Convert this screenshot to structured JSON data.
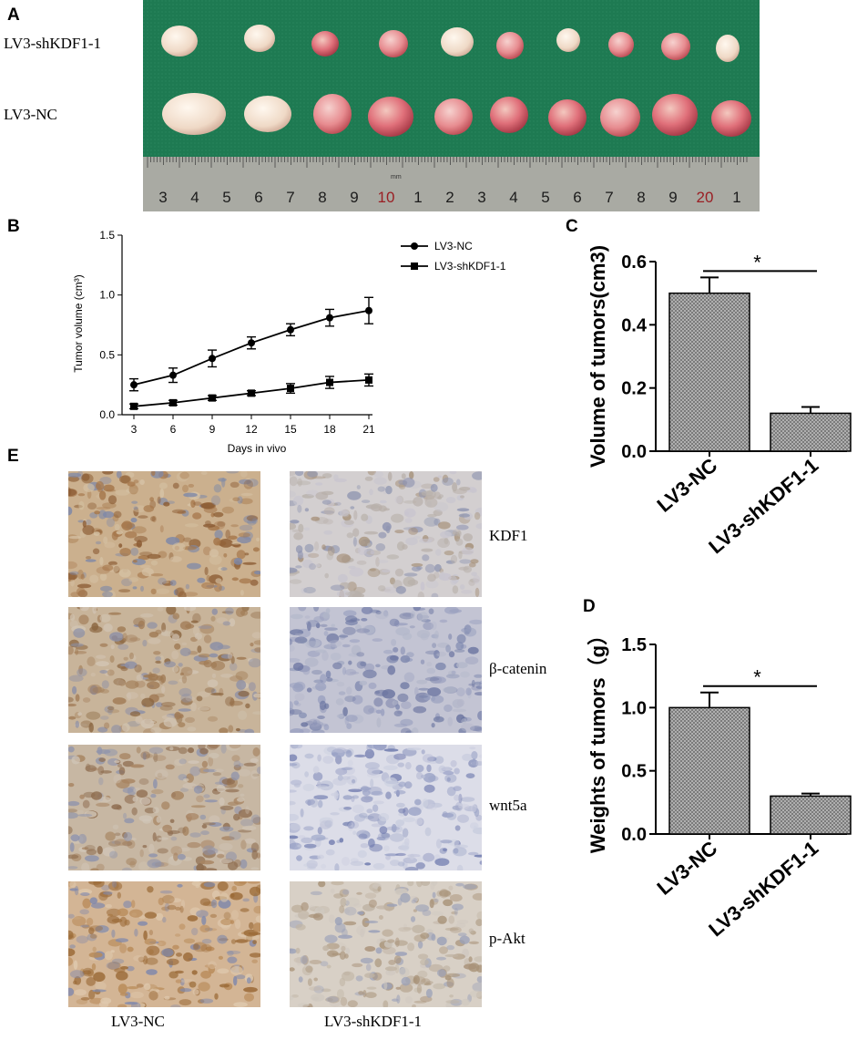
{
  "colors": {
    "cloth": "#1f7a52",
    "ruler": "#a9aaa3",
    "ruler_red": "#9a1f24",
    "tumor_pale": "#f2e4d6",
    "tumor_pink": "#e98a92",
    "ihc_brown": "#b99869",
    "ihc_blue": "#b9bccd",
    "bar_fill": "#a8a8a8"
  },
  "panel_a": {
    "letter": "A",
    "row1_label": "LV3-shKDF1-1",
    "row2_label": "LV3-NC",
    "ruler_numbers": [
      "3",
      "4",
      "5",
      "6",
      "7",
      "8",
      "9",
      "10",
      "1",
      "2",
      "3",
      "4",
      "5",
      "6",
      "7",
      "8",
      "9",
      "20",
      "1"
    ],
    "ruler_unit": "mm"
  },
  "panel_b": {
    "letter": "B",
    "chart_data": {
      "type": "line",
      "x": [
        3,
        6,
        9,
        12,
        15,
        18,
        21
      ],
      "xlabel": "Days in vivo",
      "ylabel": "Tumor volume (cm³)",
      "ylim": [
        0,
        1.5
      ],
      "yticks": [
        "0.0",
        "0.5",
        "1.0",
        "1.5"
      ],
      "xticks": [
        "3",
        "6",
        "9",
        "12",
        "15",
        "18",
        "21"
      ],
      "legend": "top-right",
      "series": [
        {
          "name": "LV3-NC",
          "marker": "circle",
          "values": [
            0.25,
            0.33,
            0.47,
            0.6,
            0.71,
            0.81,
            0.87
          ],
          "errors": [
            0.05,
            0.06,
            0.07,
            0.05,
            0.05,
            0.07,
            0.11
          ]
        },
        {
          "name": "LV3-shKDF1-1",
          "marker": "square",
          "values": [
            0.07,
            0.1,
            0.14,
            0.18,
            0.22,
            0.27,
            0.29
          ],
          "errors": [
            0.02,
            0.02,
            0.02,
            0.02,
            0.04,
            0.05,
            0.05
          ]
        }
      ]
    }
  },
  "panel_c": {
    "letter": "C",
    "chart_data": {
      "type": "bar",
      "categories": [
        "LV3-NC",
        "LV3-shKDF1-1"
      ],
      "values": [
        0.5,
        0.12
      ],
      "errors": [
        0.05,
        0.02
      ],
      "ylabel": "Volume of tumors(cm3)",
      "ylim": [
        0,
        0.6
      ],
      "yticks": [
        "0.0",
        "0.2",
        "0.4",
        "0.6"
      ],
      "annotation": "*"
    }
  },
  "panel_d": {
    "letter": "D",
    "chart_data": {
      "type": "bar",
      "categories": [
        "LV3-NC",
        "LV3-shKDF1-1"
      ],
      "values": [
        1.0,
        0.3
      ],
      "errors": [
        0.12,
        0.02
      ],
      "ylabel": "Weights of tumors（g）",
      "ylim": [
        0,
        1.5
      ],
      "yticks": [
        "0.0",
        "0.5",
        "1.0",
        "1.5"
      ],
      "annotation": "*"
    }
  },
  "panel_e": {
    "letter": "E",
    "markers": [
      "KDF1",
      "β-catenin",
      "wnt5a",
      "p-Akt"
    ],
    "columns": [
      "LV3-NC",
      "LV3-shKDF1-1"
    ]
  }
}
